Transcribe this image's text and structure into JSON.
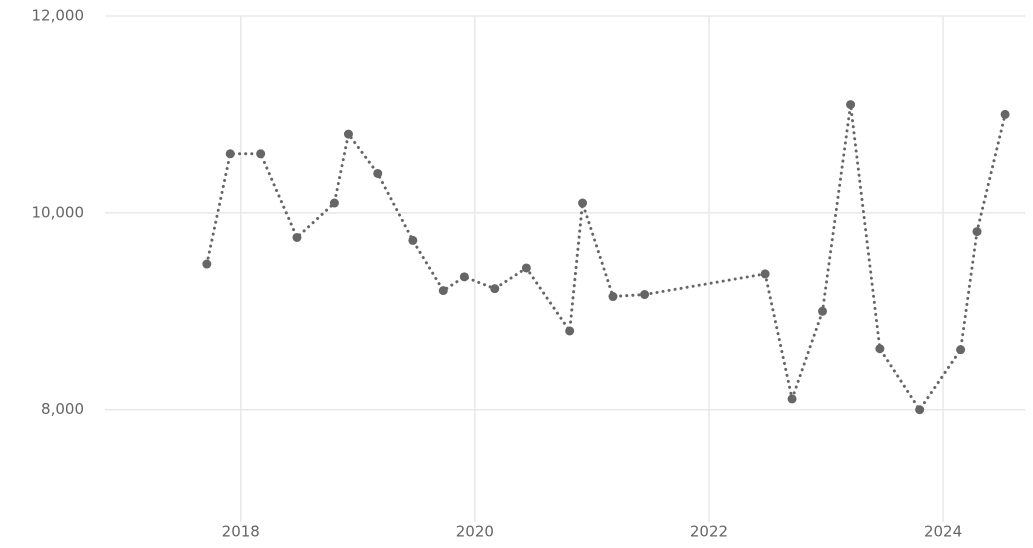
{
  "chart_data": {
    "type": "line",
    "x": [
      2017.71,
      2017.91,
      2018.17,
      2018.48,
      2018.8,
      2018.92,
      2019.17,
      2019.47,
      2019.73,
      2019.91,
      2020.17,
      2020.44,
      2020.81,
      2020.92,
      2021.18,
      2021.45,
      2022.48,
      2022.71,
      2022.97,
      2023.21,
      2023.46,
      2023.8,
      2024.15,
      2024.29,
      2024.53
    ],
    "series": [
      {
        "color": "#666666",
        "values": [
          9480,
          10600,
          10600,
          9750,
          10100,
          10800,
          10400,
          9720,
          9210,
          9350,
          9230,
          9440,
          8800,
          10100,
          9150,
          9170,
          9380,
          8110,
          9000,
          11100,
          8620,
          8000,
          8610,
          9810,
          11000
        ]
      }
    ],
    "xlim": [
      2016.84,
      2024.7
    ],
    "xticks": [
      2018,
      2020,
      2022,
      2024
    ],
    "ylim": [
      6900,
      12000
    ],
    "yticks": [
      {
        "value": 8000,
        "label": "8,000"
      },
      {
        "value": 10000,
        "label": "10,000"
      },
      {
        "value": 12000,
        "label": "12,000"
      }
    ],
    "grid": true
  }
}
